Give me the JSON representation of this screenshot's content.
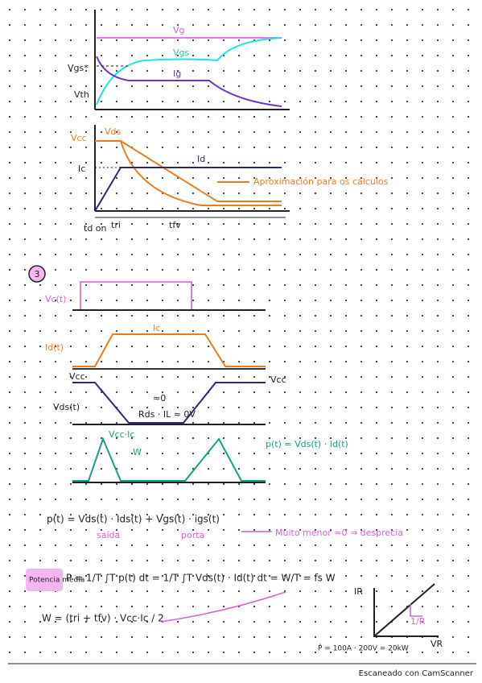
{
  "graph1": {
    "vg": "Vg",
    "vgs": "Vgs",
    "vgs_star": "Vgs*",
    "vth": "Vth",
    "ig": "Ig"
  },
  "graph2": {
    "vcc": "Vcc",
    "vds": "Vds",
    "id": "Id",
    "ic": "Ic",
    "note": "Aproximación para os cálculos",
    "td_on": "td on",
    "tri": "tri",
    "tfv": "tfv"
  },
  "section3": {
    "number": "3",
    "vc": "Vc(t)",
    "id": "Id(t)",
    "ic": "Ic",
    "vcc_left": "Vcc",
    "vcc_right": "Vcc",
    "vds": "Vds(t)",
    "approx_zero": "≈0",
    "rds": "Rds · IL ≈ 0V",
    "vcc_ic": "Vcc·Ic",
    "w": "W",
    "p_def": "p(t) = Vds(t) · Id(t)"
  },
  "formulas": {
    "p_full": "p(t) = Vds(t) · Ids(t) + Vgs(t) · igs(t)",
    "salida": "saída",
    "porta": "porta",
    "neglect": "Muito menor ≈0 ⇒ desprecia",
    "pot_media": "Potencia media",
    "p_avg": "P = 1/T ∫T p(t) dt = 1/T ∫T Vds(t) · Id(t) dt = W/T = fs W",
    "w_def": "W = (tri + tfv) · Vcc·Ic / 2",
    "ir": "IR",
    "vr": "VR",
    "slope": "1/R",
    "p_hat": "P̂ = 100A · 200V = 20kW"
  },
  "footer": "Escaneado con CamScanner"
}
